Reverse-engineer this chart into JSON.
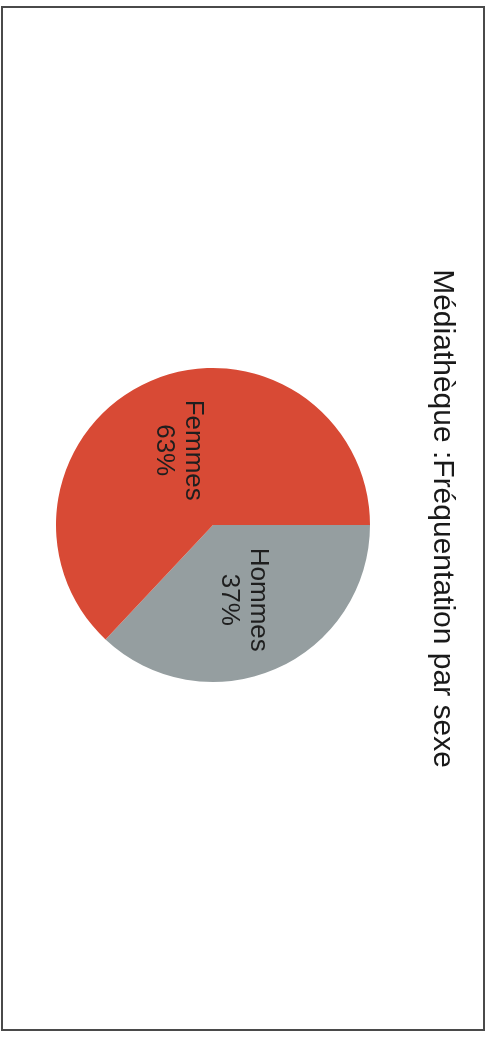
{
  "chart_data": {
    "type": "pie",
    "title": "Médiathèque :Fréquentation par sexe",
    "categories": [
      "Hommes",
      "Femmes"
    ],
    "values": [
      37,
      63
    ],
    "colors": [
      "#959ea0",
      "#d84a35"
    ],
    "value_labels": [
      "37%",
      "63%"
    ]
  }
}
